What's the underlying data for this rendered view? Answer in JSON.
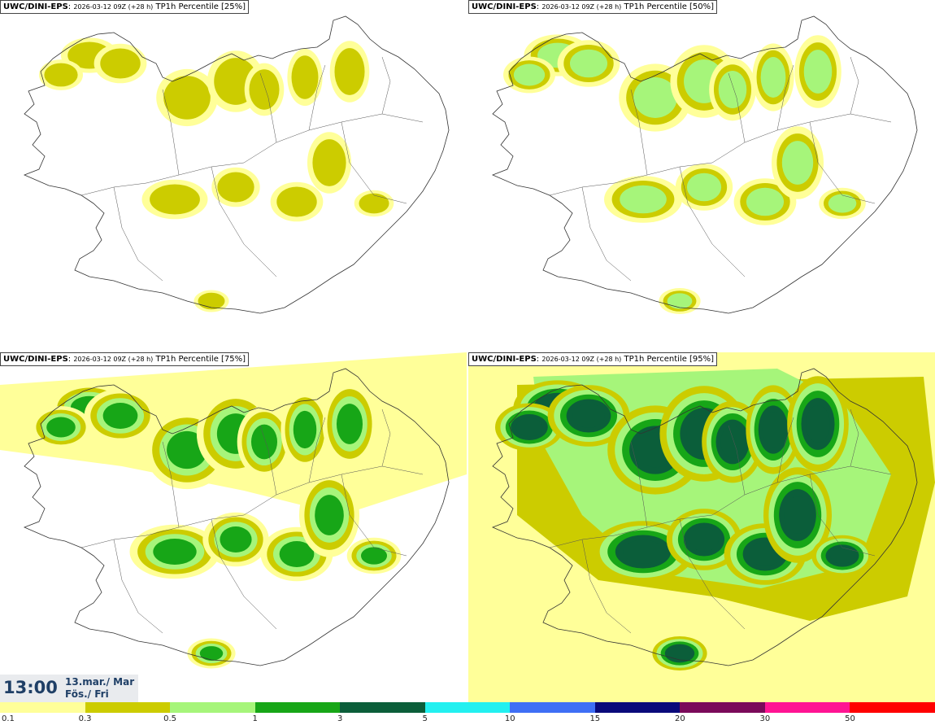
{
  "panels": [
    {
      "model": "UWC/DINI-EPS",
      "run": "2026-03-12 09Z (+28 h)",
      "field": "TP1h Percentile [25%]",
      "level": 0
    },
    {
      "model": "UWC/DINI-EPS",
      "run": "2026-03-12 09Z (+28 h)",
      "field": "TP1h Percentile [50%]",
      "level": 1
    },
    {
      "model": "UWC/DINI-EPS",
      "run": "2026-03-12 09Z (+28 h)",
      "field": "TP1h Percentile [75%]",
      "level": 2
    },
    {
      "model": "UWC/DINI-EPS",
      "run": "2026-03-12 09Z (+28 h)",
      "field": "TP1h Percentile [95%]",
      "level": 3
    }
  ],
  "valid_time": {
    "hour": "13:00",
    "date_line1": "13.mar./ Mar",
    "date_line2": "Fös./ Fri"
  },
  "legend": {
    "ticks": [
      "0.1",
      "0.3",
      "0.5",
      "1",
      "3",
      "5",
      "10",
      "15",
      "20",
      "30",
      "50"
    ],
    "colors": [
      "#ffff99",
      "#cccc00",
      "#a6f57a",
      "#17a617",
      "#0b5e3a",
      "#22f0f0",
      "#3f6ff5",
      "#0a0a7a",
      "#7a0a5a",
      "#ff1493",
      "#ff0000"
    ]
  }
}
